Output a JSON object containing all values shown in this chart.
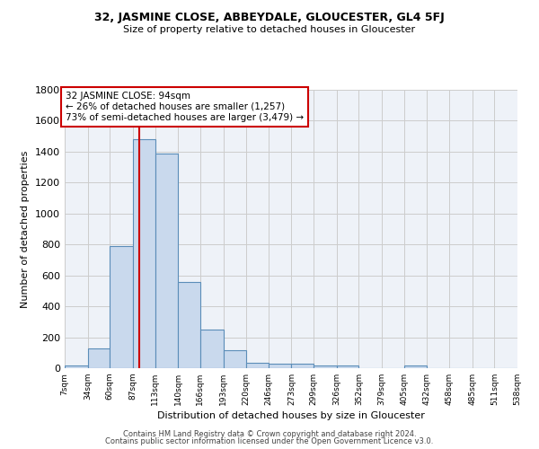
{
  "title": "32, JASMINE CLOSE, ABBEYDALE, GLOUCESTER, GL4 5FJ",
  "subtitle": "Size of property relative to detached houses in Gloucester",
  "xlabel": "Distribution of detached houses by size in Gloucester",
  "ylabel": "Number of detached properties",
  "footer1": "Contains HM Land Registry data © Crown copyright and database right 2024.",
  "footer2": "Contains public sector information licensed under the Open Government Licence v3.0.",
  "annotation_line1": "32 JASMINE CLOSE: 94sqm",
  "annotation_line2": "← 26% of detached houses are smaller (1,257)",
  "annotation_line3": "73% of semi-detached houses are larger (3,479) →",
  "bin_edges": [
    7,
    34,
    60,
    87,
    113,
    140,
    166,
    193,
    220,
    246,
    273,
    299,
    326,
    352,
    379,
    405,
    432,
    458,
    485,
    511,
    538
  ],
  "bar_heights": [
    15,
    130,
    790,
    1480,
    1390,
    560,
    250,
    115,
    35,
    30,
    30,
    18,
    18,
    0,
    0,
    20,
    0,
    0,
    0,
    0
  ],
  "bar_color": "#c9d9ed",
  "bar_edge_color": "#5b8db8",
  "vline_color": "#cc0000",
  "vline_x": 94,
  "annotation_box_color": "#cc0000",
  "ylim": [
    0,
    1800
  ],
  "yticks": [
    0,
    200,
    400,
    600,
    800,
    1000,
    1200,
    1400,
    1600,
    1800
  ],
  "grid_color": "#cccccc",
  "bg_color": "#eef2f8",
  "title_fontsize": 9,
  "subtitle_fontsize": 8,
  "ylabel_fontsize": 8,
  "xlabel_fontsize": 8
}
